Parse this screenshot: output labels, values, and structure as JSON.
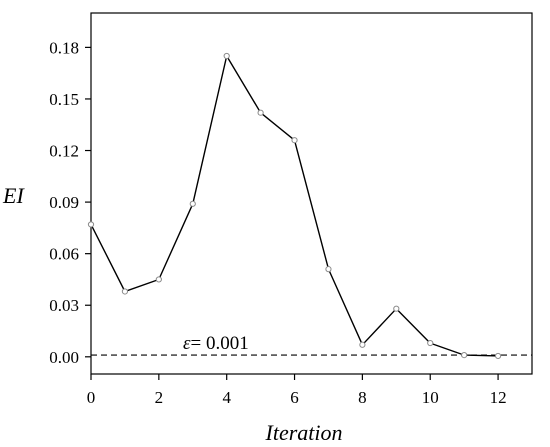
{
  "chart_data": {
    "type": "line",
    "title": "",
    "xlabel": "Iteration",
    "ylabel": "EI",
    "xlim": [
      0,
      13
    ],
    "ylim": [
      -0.01,
      0.2
    ],
    "xticks": [
      0,
      2,
      4,
      6,
      8,
      10,
      12
    ],
    "xtick_labels": [
      "0",
      "2",
      "4",
      "6",
      "8",
      "10",
      "12"
    ],
    "yticks": [
      0.0,
      0.03,
      0.06,
      0.09,
      0.12,
      0.15,
      0.18
    ],
    "ytick_labels": [
      "0.00",
      "0.03",
      "0.06",
      "0.09",
      "0.12",
      "0.15",
      "0.18"
    ],
    "grid": false,
    "series": [
      {
        "x": [
          0,
          1,
          2,
          3,
          4,
          5,
          6,
          7,
          8,
          9,
          10,
          11,
          12
        ],
        "values": [
          0.077,
          0.038,
          0.045,
          0.089,
          0.175,
          0.142,
          0.126,
          0.051,
          0.007,
          0.028,
          0.008,
          0.001,
          0.0005
        ],
        "color": "#000000",
        "marker": "circle"
      }
    ],
    "threshold": {
      "y": 0.001,
      "style": "dashed",
      "color": "#000000"
    },
    "annotation": {
      "symbol": "ε",
      "text": "= 0.001"
    }
  }
}
